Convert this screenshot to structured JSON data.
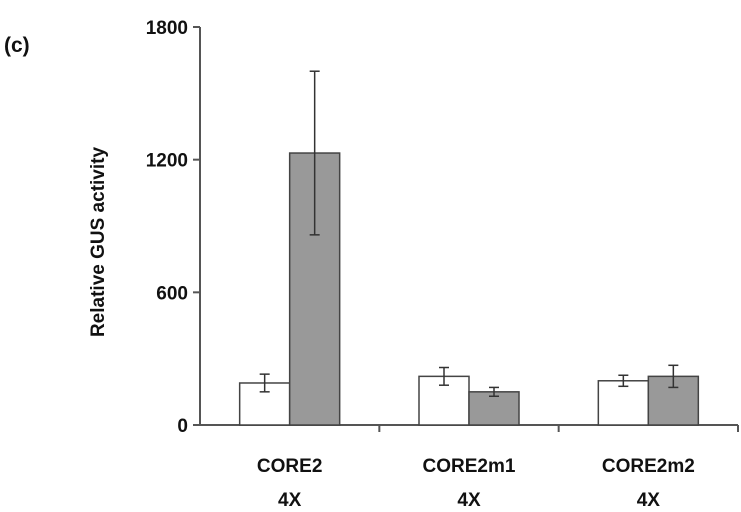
{
  "panel_label": "(c)",
  "chart_data": {
    "type": "bar",
    "ylabel": "Relative GUS activity",
    "xlabel": "",
    "ylim": [
      0,
      1800
    ],
    "yticks": [
      0,
      600,
      1200,
      1800
    ],
    "grid": false,
    "legend": "none",
    "categories": [
      [
        "CORE2",
        "4X"
      ],
      [
        "CORE2m1",
        "4X"
      ],
      [
        "CORE2m2",
        "4X"
      ]
    ],
    "series": [
      {
        "color": "#ffffff",
        "values": [
          190,
          220,
          200
        ],
        "errors": [
          40,
          40,
          25
        ]
      },
      {
        "color": "#999999",
        "values": [
          1230,
          150,
          220
        ],
        "errors": [
          370,
          20,
          50
        ]
      }
    ]
  }
}
